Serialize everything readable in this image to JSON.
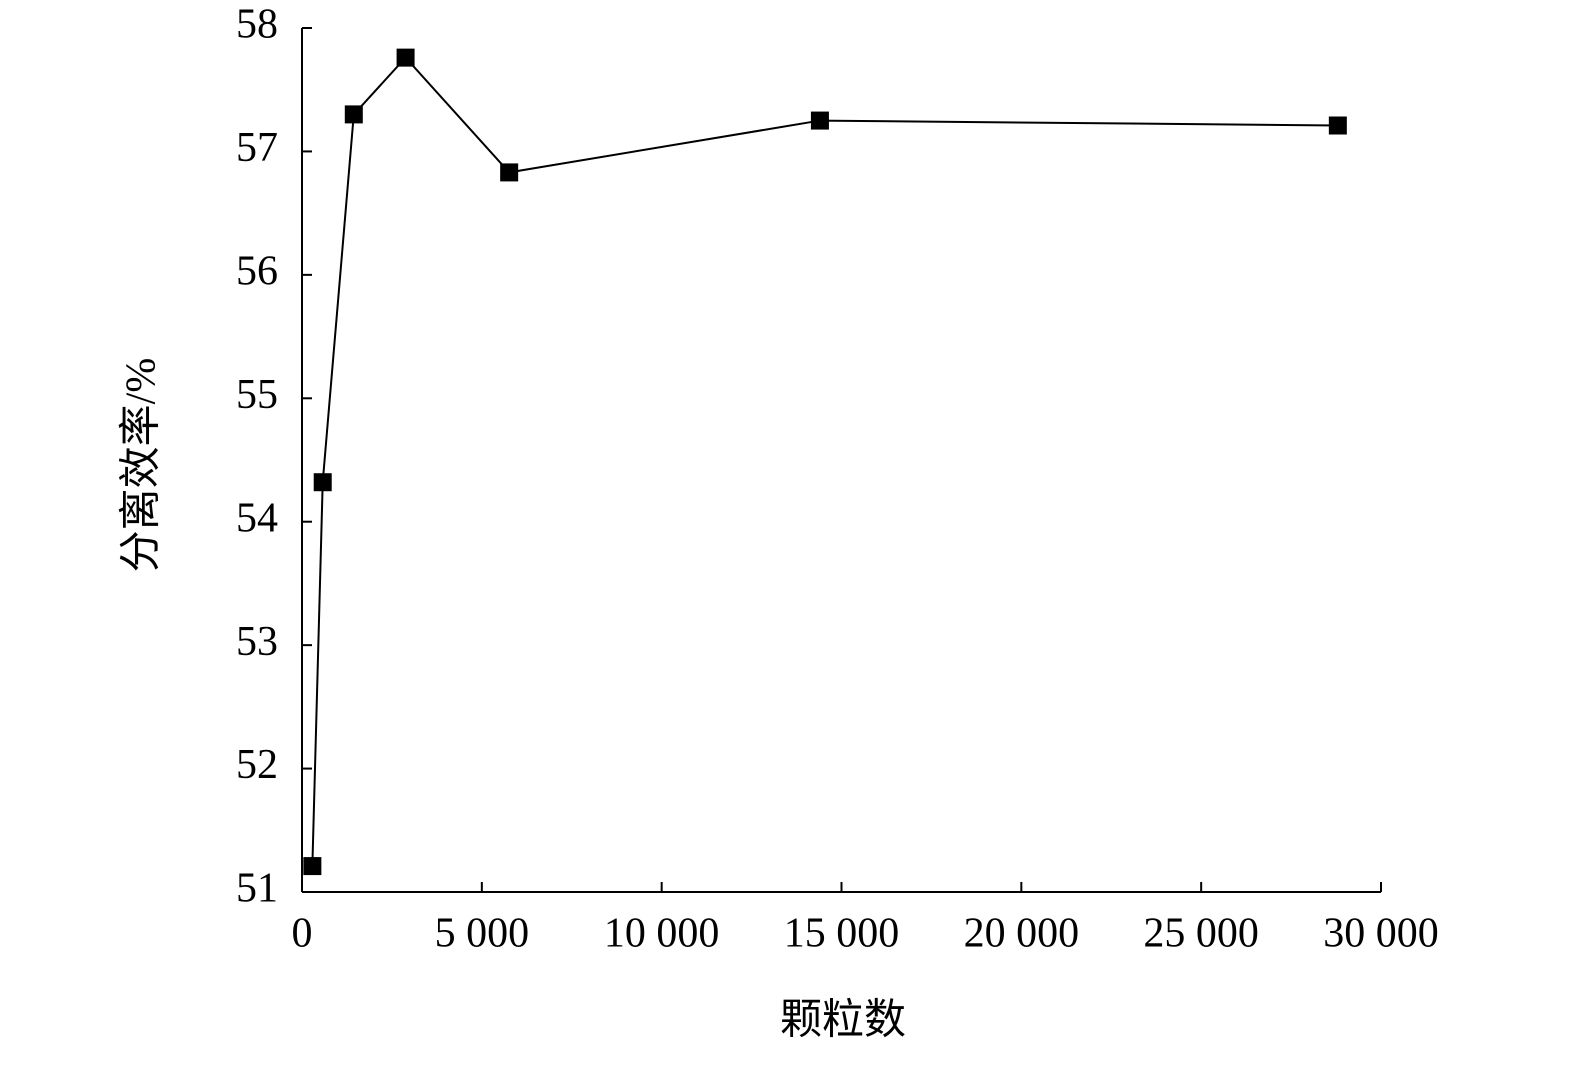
{
  "chart_data": {
    "type": "line",
    "x_label": "颗粒数",
    "y_label": "分离效率/%",
    "x": [
      288,
      576,
      1440,
      2880,
      5760,
      14400,
      28800
    ],
    "series": [
      {
        "name": "分离效率",
        "color": "#000000",
        "values": [
          51.21,
          54.32,
          57.3,
          57.76,
          56.83,
          57.25,
          57.21
        ]
      }
    ],
    "xlim": [
      0,
      30000
    ],
    "xticks": [
      0,
      {
        "value": 5000,
        "label": "5 000"
      },
      {
        "value": 10000,
        "label": "10 000"
      },
      {
        "value": 15000,
        "label": "15 000"
      },
      {
        "value": 20000,
        "label": "20 000"
      },
      {
        "value": 25000,
        "label": "25 000"
      },
      {
        "value": 30000,
        "label": "30 000"
      }
    ],
    "ylim": [
      51,
      58
    ],
    "yticks": [
      51,
      52,
      53,
      54,
      55,
      56,
      57,
      58
    ],
    "grid": false,
    "marker": "square"
  }
}
